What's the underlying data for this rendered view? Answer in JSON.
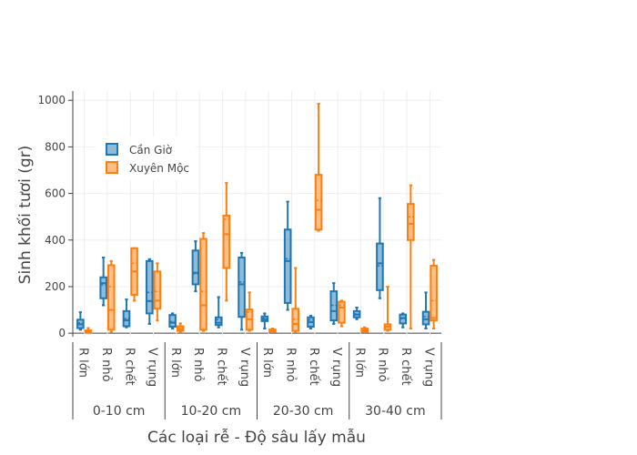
{
  "chart_data": {
    "type": "box",
    "ylabel": "Sinh khối tươi (gr)",
    "xlabel": "Các loại rễ - Độ sâu lấy mẫu",
    "ylim": [
      -15,
      1040
    ],
    "yticks": [
      0,
      200,
      400,
      600,
      800,
      1000
    ],
    "grid": true,
    "legend_position": "top-left",
    "groups": [
      "0-10 cm",
      "10-20 cm",
      "20-30 cm",
      "30-40 cm"
    ],
    "categories": [
      "R lớn",
      "R nhỏ",
      "R chết",
      "V rụng"
    ],
    "series": [
      {
        "name": "Cần Giờ",
        "color": "#1f77b4",
        "fill": "rgba(31,119,180,0.5)",
        "boxes": [
          {
            "group": "0-10 cm",
            "category": "R lớn",
            "min": 15,
            "q1": 22,
            "median": 38,
            "mean": 44,
            "q3": 58,
            "max": 90
          },
          {
            "group": "0-10 cm",
            "category": "R nhỏ",
            "min": 120,
            "q1": 150,
            "median": 215,
            "mean": 208,
            "q3": 240,
            "max": 325
          },
          {
            "group": "0-10 cm",
            "category": "R chết",
            "min": 25,
            "q1": 30,
            "median": 55,
            "mean": 62,
            "q3": 95,
            "max": 145
          },
          {
            "group": "0-10 cm",
            "category": "V rụng",
            "min": 40,
            "q1": 85,
            "median": 138,
            "mean": 175,
            "q3": 310,
            "max": 318
          },
          {
            "group": "10-20 cm",
            "category": "R lớn",
            "min": 20,
            "q1": 28,
            "median": 45,
            "mean": 50,
            "q3": 78,
            "max": 85
          },
          {
            "group": "10-20 cm",
            "category": "R nhỏ",
            "min": 180,
            "q1": 210,
            "median": 260,
            "mean": 255,
            "q3": 355,
            "max": 395
          },
          {
            "group": "10-20 cm",
            "category": "R chết",
            "min": 25,
            "q1": 35,
            "median": 45,
            "mean": 58,
            "q3": 68,
            "max": 155
          },
          {
            "group": "10-20 cm",
            "category": "V rụng",
            "min": 15,
            "q1": 70,
            "median": 210,
            "mean": 220,
            "q3": 325,
            "max": 345
          },
          {
            "group": "20-30 cm",
            "category": "R lớn",
            "min": 20,
            "q1": 52,
            "median": 60,
            "mean": 64,
            "q3": 72,
            "max": 85
          },
          {
            "group": "20-30 cm",
            "category": "R nhỏ",
            "min": 100,
            "q1": 130,
            "median": 310,
            "mean": 320,
            "q3": 445,
            "max": 565
          },
          {
            "group": "20-30 cm",
            "category": "R chết",
            "min": 20,
            "q1": 28,
            "median": 48,
            "mean": 58,
            "q3": 68,
            "max": 75
          },
          {
            "group": "20-30 cm",
            "category": "V rụng",
            "min": 40,
            "q1": 55,
            "median": 95,
            "mean": 120,
            "q3": 180,
            "max": 215
          },
          {
            "group": "30-40 cm",
            "category": "R lớn",
            "min": 60,
            "q1": 68,
            "median": 80,
            "mean": 82,
            "q3": 95,
            "max": 110
          },
          {
            "group": "30-40 cm",
            "category": "R nhỏ",
            "min": 150,
            "q1": 185,
            "median": 300,
            "mean": 290,
            "q3": 385,
            "max": 580
          },
          {
            "group": "30-40 cm",
            "category": "R chết",
            "min": 25,
            "q1": 42,
            "median": 65,
            "mean": 62,
            "q3": 80,
            "max": 85
          },
          {
            "group": "30-40 cm",
            "category": "V rụng",
            "min": 20,
            "q1": 38,
            "median": 60,
            "mean": 72,
            "q3": 92,
            "max": 175
          }
        ]
      },
      {
        "name": "Xuyên Mộc",
        "color": "#ff7f0e",
        "fill": "rgba(255,127,14,0.5)",
        "boxes": [
          {
            "group": "0-10 cm",
            "category": "R lớn",
            "min": 2,
            "q1": 3,
            "median": 8,
            "mean": 9,
            "q3": 12,
            "max": 22
          },
          {
            "group": "0-10 cm",
            "category": "R nhỏ",
            "min": 5,
            "q1": 15,
            "median": 100,
            "mean": 200,
            "q3": 292,
            "max": 310
          },
          {
            "group": "0-10 cm",
            "category": "R chết",
            "min": 140,
            "q1": 165,
            "median": 265,
            "mean": 300,
            "q3": 365,
            "max": 365
          },
          {
            "group": "0-10 cm",
            "category": "V rụng",
            "min": 55,
            "q1": 105,
            "median": 140,
            "mean": 180,
            "q3": 265,
            "max": 300
          },
          {
            "group": "10-20 cm",
            "category": "R lớn",
            "min": 5,
            "q1": 10,
            "median": 18,
            "mean": 22,
            "q3": 30,
            "max": 42
          },
          {
            "group": "10-20 cm",
            "category": "R nhỏ",
            "min": 10,
            "q1": 15,
            "median": 120,
            "mean": 180,
            "q3": 405,
            "max": 430
          },
          {
            "group": "10-20 cm",
            "category": "R chết",
            "min": 140,
            "q1": 280,
            "median": 425,
            "mean": 490,
            "q3": 505,
            "max": 645
          },
          {
            "group": "10-20 cm",
            "category": "V rụng",
            "min": 10,
            "q1": 15,
            "median": 60,
            "mean": 90,
            "q3": 102,
            "max": 175
          },
          {
            "group": "20-30 cm",
            "category": "R lớn",
            "min": 5,
            "q1": 6,
            "median": 10,
            "mean": 12,
            "q3": 16,
            "max": 20
          },
          {
            "group": "20-30 cm",
            "category": "R nhỏ",
            "min": 5,
            "q1": 10,
            "median": 40,
            "mean": 60,
            "q3": 105,
            "max": 280
          },
          {
            "group": "20-30 cm",
            "category": "R chết",
            "min": 440,
            "q1": 445,
            "median": 530,
            "mean": 570,
            "q3": 680,
            "max": 985
          },
          {
            "group": "20-30 cm",
            "category": "V rụng",
            "min": 30,
            "q1": 45,
            "median": 110,
            "mean": 120,
            "q3": 135,
            "max": 140
          },
          {
            "group": "30-40 cm",
            "category": "R lớn",
            "min": 5,
            "q1": 6,
            "median": 12,
            "mean": 14,
            "q3": 20,
            "max": 25
          },
          {
            "group": "30-40 cm",
            "category": "R nhỏ",
            "min": 10,
            "q1": 15,
            "median": 28,
            "mean": 38,
            "q3": 38,
            "max": 200
          },
          {
            "group": "30-40 cm",
            "category": "R chết",
            "min": 20,
            "q1": 400,
            "median": 470,
            "mean": 500,
            "q3": 555,
            "max": 635
          },
          {
            "group": "30-40 cm",
            "category": "V rụng",
            "min": 20,
            "q1": 55,
            "median": 65,
            "mean": 140,
            "q3": 290,
            "max": 315
          }
        ]
      }
    ]
  }
}
